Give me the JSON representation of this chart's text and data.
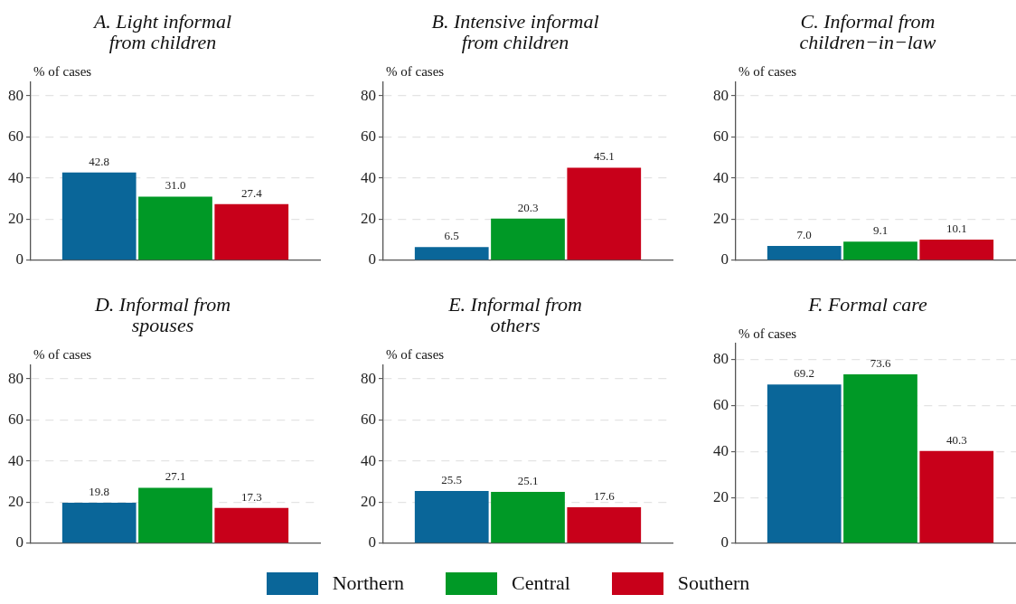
{
  "chart_data": [
    {
      "type": "bar",
      "title": "A. Light informal from children",
      "ylabel": "% of cases",
      "categories": [
        null
      ],
      "series": [
        {
          "name": "Northern",
          "color": "#0a6699",
          "values": [
            42.8
          ],
          "value_labels": [
            "42.8"
          ]
        },
        {
          "name": "Central",
          "color": "#009926",
          "values": [
            31.0
          ],
          "value_labels": [
            "31.0"
          ]
        },
        {
          "name": "Southern",
          "color": "#c8001a",
          "values": [
            27.4
          ],
          "value_labels": [
            "27.4"
          ]
        }
      ],
      "ylim": [
        0,
        87
      ],
      "yticks": [
        0,
        20,
        40,
        60,
        80
      ],
      "grid": "y",
      "tick_labels": "y",
      "legend": "bottom"
    },
    {
      "type": "bar",
      "title": "B. Intensive informal from children",
      "ylabel": "% of cases",
      "categories": [
        null
      ],
      "series": [
        {
          "name": "Northern",
          "color": "#0a6699",
          "values": [
            6.5
          ],
          "value_labels": [
            "6.5"
          ]
        },
        {
          "name": "Central",
          "color": "#009926",
          "values": [
            20.3
          ],
          "value_labels": [
            "20.3"
          ]
        },
        {
          "name": "Southern",
          "color": "#c8001a",
          "values": [
            45.1
          ],
          "value_labels": [
            "45.1"
          ]
        }
      ],
      "ylim": [
        0,
        87
      ],
      "yticks": [
        0,
        20,
        40,
        60,
        80
      ],
      "grid": "y",
      "tick_labels": "y",
      "legend": "bottom"
    },
    {
      "type": "bar",
      "title": "C. Informal from children−in−law",
      "ylabel": "% of cases",
      "categories": [
        null
      ],
      "series": [
        {
          "name": "Northern",
          "color": "#0a6699",
          "values": [
            7.0
          ],
          "value_labels": [
            "7.0"
          ]
        },
        {
          "name": "Central",
          "color": "#009926",
          "values": [
            9.1
          ],
          "value_labels": [
            "9.1"
          ]
        },
        {
          "name": "Southern",
          "color": "#c8001a",
          "values": [
            10.1
          ],
          "value_labels": [
            "10.1"
          ]
        }
      ],
      "ylim": [
        0,
        87
      ],
      "yticks": [
        0,
        20,
        40,
        60,
        80
      ],
      "grid": "y",
      "tick_labels": "y",
      "legend": "bottom"
    },
    {
      "type": "bar",
      "title": "D. Informal from spouses",
      "ylabel": "% of cases",
      "categories": [
        null
      ],
      "series": [
        {
          "name": "Northern",
          "color": "#0a6699",
          "values": [
            19.8
          ],
          "value_labels": [
            "19.8"
          ]
        },
        {
          "name": "Central",
          "color": "#009926",
          "values": [
            27.1
          ],
          "value_labels": [
            "27.1"
          ]
        },
        {
          "name": "Southern",
          "color": "#c8001a",
          "values": [
            17.3
          ],
          "value_labels": [
            "17.3"
          ]
        }
      ],
      "ylim": [
        0,
        87
      ],
      "yticks": [
        0,
        20,
        40,
        60,
        80
      ],
      "grid": "y",
      "tick_labels": "y",
      "legend": "bottom"
    },
    {
      "type": "bar",
      "title": "E. Informal from others",
      "ylabel": "% of cases",
      "categories": [
        null
      ],
      "series": [
        {
          "name": "Northern",
          "color": "#0a6699",
          "values": [
            25.5
          ],
          "value_labels": [
            "25.5"
          ]
        },
        {
          "name": "Central",
          "color": "#009926",
          "values": [
            25.1
          ],
          "value_labels": [
            "25.1"
          ]
        },
        {
          "name": "Southern",
          "color": "#c8001a",
          "values": [
            17.6
          ],
          "value_labels": [
            "17.6"
          ]
        }
      ],
      "ylim": [
        0,
        87
      ],
      "yticks": [
        0,
        20,
        40,
        60,
        80
      ],
      "grid": "y",
      "tick_labels": "y",
      "legend": "bottom"
    },
    {
      "type": "bar",
      "title": "F. Formal care",
      "ylabel": "% of cases",
      "categories": [
        null
      ],
      "series": [
        {
          "name": "Northern",
          "color": "#0a6699",
          "values": [
            69.2
          ],
          "value_labels": [
            "69.2"
          ]
        },
        {
          "name": "Central",
          "color": "#009926",
          "values": [
            73.6
          ],
          "value_labels": [
            "73.6"
          ]
        },
        {
          "name": "Southern",
          "color": "#c8001a",
          "values": [
            40.3
          ],
          "value_labels": [
            "40.3"
          ]
        }
      ],
      "ylim": [
        0,
        87
      ],
      "yticks": [
        0,
        20,
        40,
        60,
        80
      ],
      "grid": "y",
      "tick_labels": "y",
      "legend": "bottom"
    }
  ]
}
